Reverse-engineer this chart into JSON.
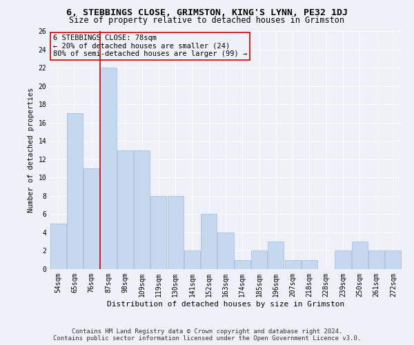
{
  "title": "6, STEBBINGS CLOSE, GRIMSTON, KING'S LYNN, PE32 1DJ",
  "subtitle": "Size of property relative to detached houses in Grimston",
  "xlabel": "Distribution of detached houses by size in Grimston",
  "ylabel": "Number of detached properties",
  "bar_labels": [
    "54sqm",
    "65sqm",
    "76sqm",
    "87sqm",
    "98sqm",
    "109sqm",
    "119sqm",
    "130sqm",
    "141sqm",
    "152sqm",
    "163sqm",
    "174sqm",
    "185sqm",
    "196sqm",
    "207sqm",
    "218sqm",
    "228sqm",
    "239sqm",
    "250sqm",
    "261sqm",
    "272sqm"
  ],
  "bar_values": [
    5,
    17,
    11,
    22,
    13,
    13,
    8,
    8,
    2,
    6,
    4,
    1,
    2,
    3,
    1,
    1,
    0,
    2,
    3,
    2,
    2
  ],
  "bar_color": "#c5d8f0",
  "bar_edgecolor": "#a0b8d8",
  "vline_x_idx": 2,
  "vline_color": "#cc0000",
  "annotation_text": "6 STEBBINGS CLOSE: 78sqm\n← 20% of detached houses are smaller (24)\n80% of semi-detached houses are larger (99) →",
  "annotation_box_edgecolor": "#cc0000",
  "annotation_fontsize": 7.5,
  "ylim": [
    0,
    26
  ],
  "yticks": [
    0,
    2,
    4,
    6,
    8,
    10,
    12,
    14,
    16,
    18,
    20,
    22,
    24,
    26
  ],
  "footer_text": "Contains HM Land Registry data © Crown copyright and database right 2024.\nContains public sector information licensed under the Open Government Licence v3.0.",
  "bg_color": "#eef2f8",
  "plot_bg_color": "#eef2f8",
  "grid_color": "#ffffff",
  "title_fontsize": 9.5,
  "subtitle_fontsize": 8.5,
  "xlabel_fontsize": 8,
  "ylabel_fontsize": 7.5,
  "tick_fontsize": 7,
  "footer_fontsize": 6.5
}
